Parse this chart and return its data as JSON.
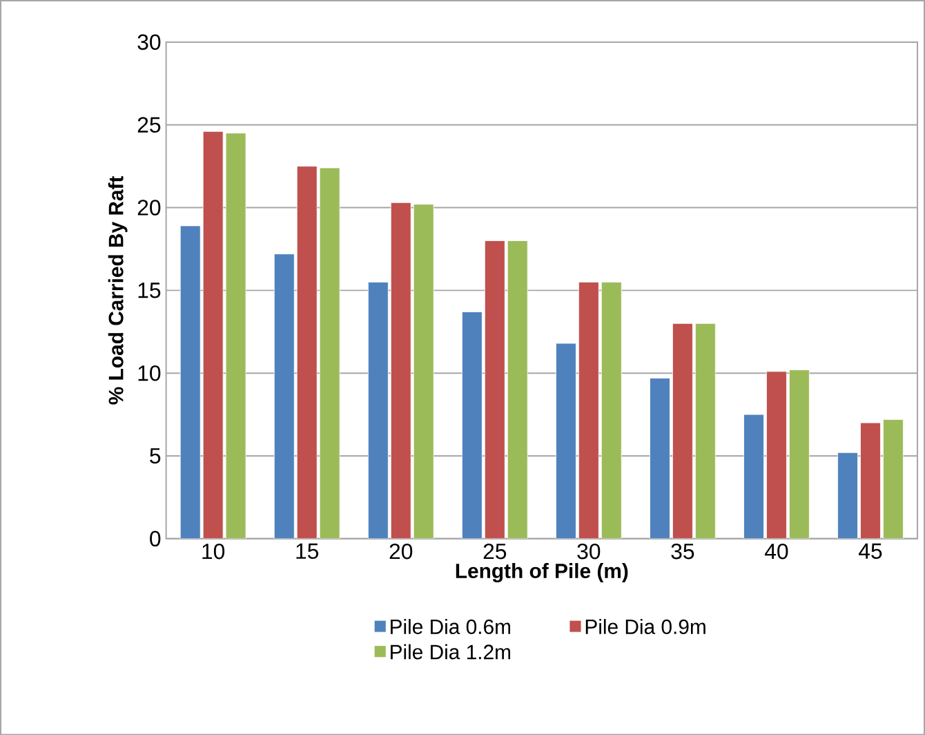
{
  "chart_data": {
    "type": "bar",
    "xlabel": "Length of Pile  (m)",
    "ylabel": "% Load Carried By Raft",
    "categories": [
      "10",
      "15",
      "20",
      "25",
      "30",
      "35",
      "40",
      "45"
    ],
    "series": [
      {
        "name": "Pile Dia 0.6m",
        "color": "#4f81bd",
        "values": [
          18.9,
          17.2,
          15.5,
          13.7,
          11.8,
          9.7,
          7.5,
          5.2
        ]
      },
      {
        "name": "Pile Dia 0.9m",
        "color": "#c0504d",
        "values": [
          24.6,
          22.5,
          20.3,
          18.0,
          15.5,
          13.0,
          10.1,
          7.0
        ]
      },
      {
        "name": "Pile Dia 1.2m",
        "color": "#9bbb59",
        "values": [
          24.5,
          22.4,
          20.2,
          18.0,
          15.5,
          13.0,
          10.2,
          7.2
        ]
      }
    ],
    "ylim": [
      0,
      30
    ],
    "yticks": [
      0,
      5,
      10,
      15,
      20,
      25,
      30
    ],
    "grid": "y",
    "legend": "bottom"
  }
}
